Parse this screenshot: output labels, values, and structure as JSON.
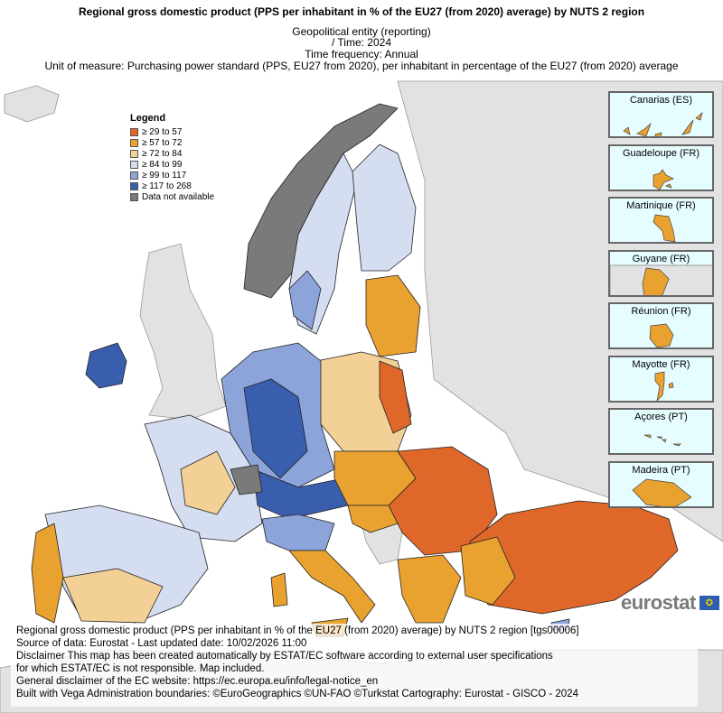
{
  "header": {
    "title": "Regional gross domestic product (PPS per inhabitant in % of the EU27 (from 2020) average) by NUTS 2 region",
    "subtitle_lines": [
      "Geopolitical entity (reporting)",
      "/ Time:  2024",
      "Time frequency:  Annual",
      "Unit of measure:  Purchasing power standard (PPS, EU27 from 2020), per inhabitant in percentage of the EU27 (from 2020) average"
    ]
  },
  "legend": {
    "title": "Legend",
    "items": [
      {
        "label": "≥ 29 to 57",
        "color": "#e0672a"
      },
      {
        "label": "≥ 57 to 72",
        "color": "#e9a22f"
      },
      {
        "label": "≥ 72 to 84",
        "color": "#f3d096"
      },
      {
        "label": "≥ 84 to 99",
        "color": "#d5ddf1"
      },
      {
        "label": "≥ 99 to 117",
        "color": "#8ca4da"
      },
      {
        "label": "≥ 117 to 268",
        "color": "#3a5eae"
      },
      {
        "label": "Data not available",
        "color": "#7a7a7a"
      }
    ]
  },
  "insets": [
    {
      "label": "Canarias (ES)"
    },
    {
      "label": "Guadeloupe (FR)"
    },
    {
      "label": "Martinique (FR)"
    },
    {
      "label": "Guyane (FR)"
    },
    {
      "label": "Réunion (FR)"
    },
    {
      "label": "Mayotte (FR)"
    },
    {
      "label": "Açores (PT)"
    },
    {
      "label": "Madeira (PT)"
    }
  ],
  "logo": {
    "text": "eurostat"
  },
  "footer": {
    "lines": [
      "Regional gross domestic product (PPS per inhabitant in % of the EU27 (from 2020) average) by NUTS 2 region [tgs00006]",
      "Source of data: Eurostat - Last updated date: 10/02/2026 11:00",
      "Disclaimer This map has been created automatically by ESTAT/EC software according to external user specifications",
      "for which ESTAT/EC is not responsible. Map included.",
      "General disclaimer of the EC website: https://ec.europa.eu/info/legal-notice_en",
      "Built with Vega Administration boundaries: ©EuroGeographics ©UN-FAO ©Turkstat Cartography: Eurostat - GISCO - 2024"
    ]
  }
}
